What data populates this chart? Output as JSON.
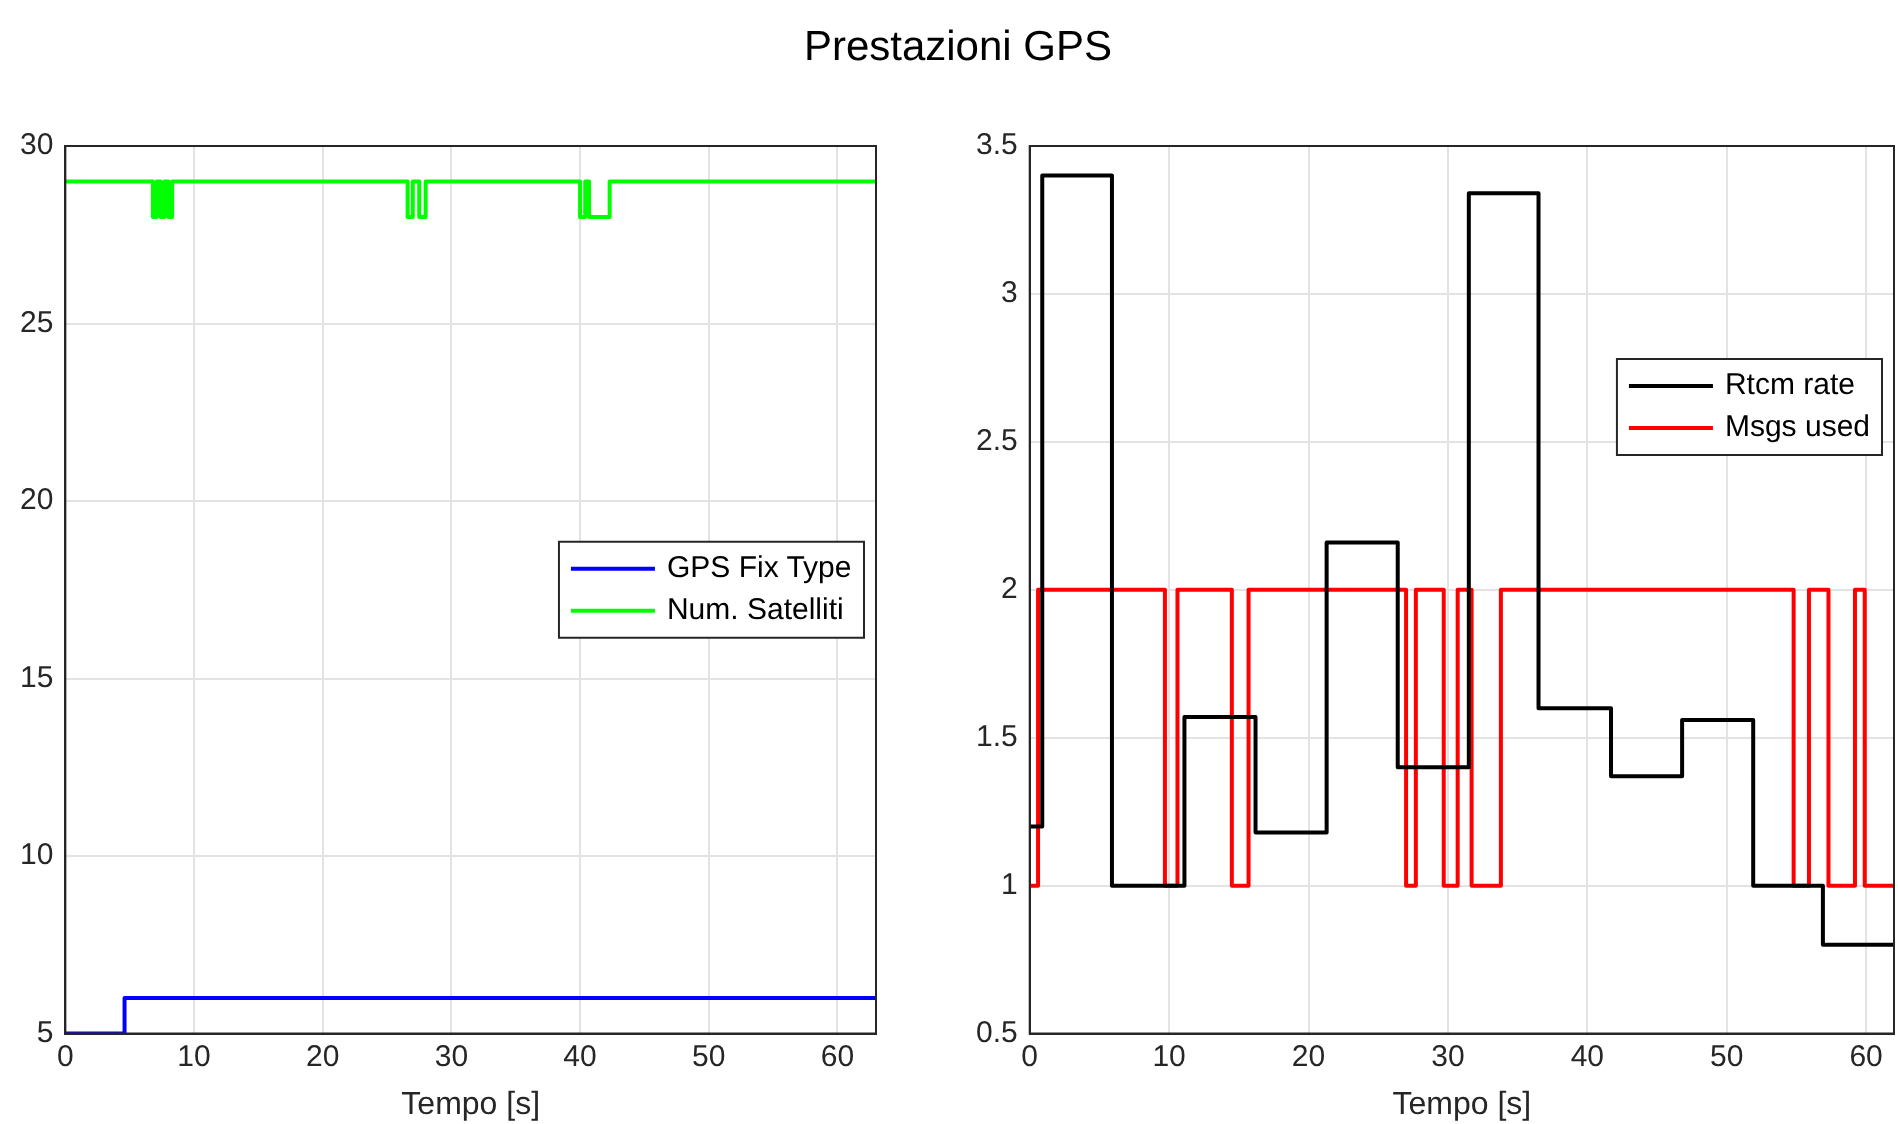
{
  "chart_data": [
    {
      "type": "step",
      "title": "Prestazioni GPS",
      "xlabel": "Tempo [s]",
      "xlim": [
        0,
        63
      ],
      "xticks": [
        0,
        10,
        20,
        30,
        40,
        50,
        60
      ],
      "ylim": [
        5,
        30
      ],
      "yticks": [
        5,
        10,
        15,
        20,
        25,
        30
      ],
      "grid": true,
      "legend": "right",
      "series": [
        {
          "name": "GPS Fix Type",
          "color": "#0000ff",
          "x": [
            0,
            4.6,
            63
          ],
          "values": [
            5,
            6,
            6
          ]
        },
        {
          "name": "Num. Satelliti",
          "color": "#00ff00",
          "x": [
            0,
            6.8,
            7.1,
            7.4,
            7.7,
            8.0,
            8.3,
            26.6,
            27.0,
            27.5,
            28.0,
            40.0,
            40.4,
            40.7,
            42.3,
            63
          ],
          "values": [
            29,
            28,
            29,
            28,
            29,
            28,
            29,
            28,
            29,
            28,
            29,
            28,
            29,
            28,
            29,
            29
          ]
        }
      ]
    },
    {
      "type": "step",
      "xlabel": "Tempo [s]",
      "xlim": [
        0,
        62
      ],
      "xticks": [
        0,
        10,
        20,
        30,
        40,
        50,
        60
      ],
      "ylim": [
        0.5,
        3.5
      ],
      "yticks": [
        0.5,
        1,
        1.5,
        2,
        2.5,
        3,
        3.5
      ],
      "grid": true,
      "legend": "top right",
      "series": [
        {
          "name": "Rtcm rate",
          "color": "#000000",
          "x": [
            0,
            0.9,
            5.9,
            11.1,
            16.2,
            21.3,
            26.4,
            31.5,
            36.5,
            41.7,
            46.8,
            51.9,
            56.9,
            62
          ],
          "values": [
            1.2,
            3.4,
            1.0,
            1.57,
            1.18,
            2.16,
            1.4,
            3.34,
            1.6,
            1.37,
            1.56,
            1.0,
            0.8,
            0.8
          ]
        },
        {
          "name": "Msgs used",
          "color": "#ff0000",
          "x": [
            0,
            0.6,
            9.7,
            10.6,
            14.5,
            15.7,
            27.0,
            27.7,
            29.7,
            30.7,
            31.7,
            33.8,
            54.8,
            55.9,
            57.3,
            59.2,
            59.9,
            62
          ],
          "values": [
            1,
            2,
            1,
            2,
            1,
            2,
            1,
            2,
            1,
            2,
            1,
            2,
            1,
            2,
            1,
            2,
            1,
            1
          ]
        }
      ]
    }
  ]
}
